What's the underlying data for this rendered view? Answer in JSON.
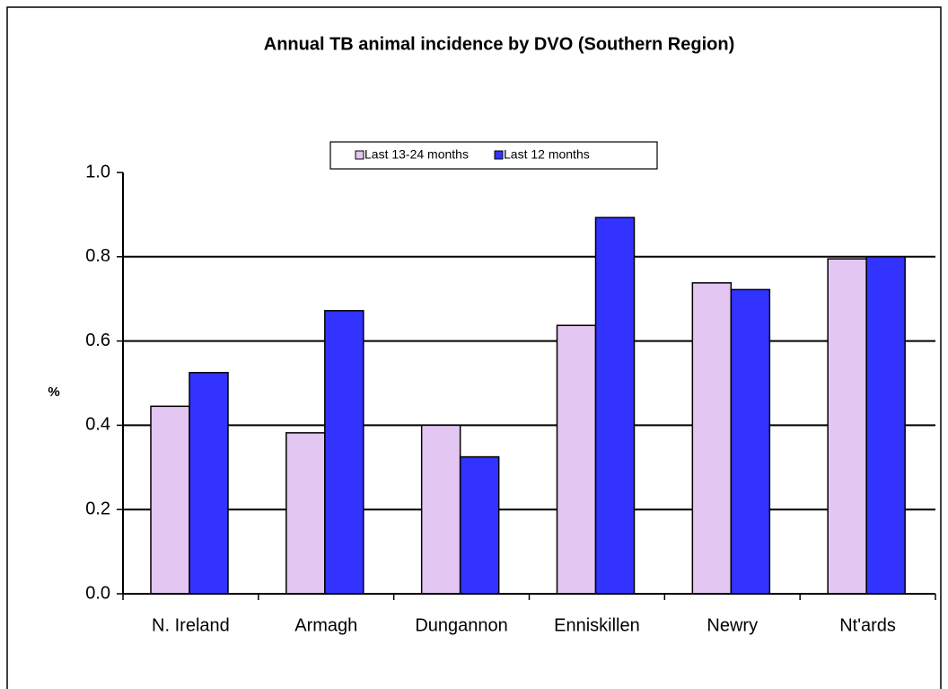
{
  "chart_data": {
    "type": "bar",
    "title": "Annual TB animal incidence  by DVO (Southern Region)",
    "y_label": "%",
    "categories": [
      "N. Ireland",
      "Armagh",
      "Dungannon",
      "Enniskillen",
      "Newry",
      "Nt'ards"
    ],
    "series": [
      {
        "name": "Last 13-24 months",
        "color": "#e3c6f2",
        "values": [
          0.445,
          0.382,
          0.4,
          0.637,
          0.738,
          0.795
        ]
      },
      {
        "name": "Last 12 months",
        "color": "#3333ff",
        "values": [
          0.525,
          0.672,
          0.325,
          0.893,
          0.722,
          0.8
        ]
      }
    ],
    "ylim": [
      0,
      1
    ],
    "yticks": [
      {
        "value": 0,
        "label": "0.0"
      },
      0.2,
      0.4,
      0.6,
      0.8,
      {
        "value": 1,
        "label": "1.0"
      }
    ],
    "grid": true,
    "legend": "top"
  }
}
